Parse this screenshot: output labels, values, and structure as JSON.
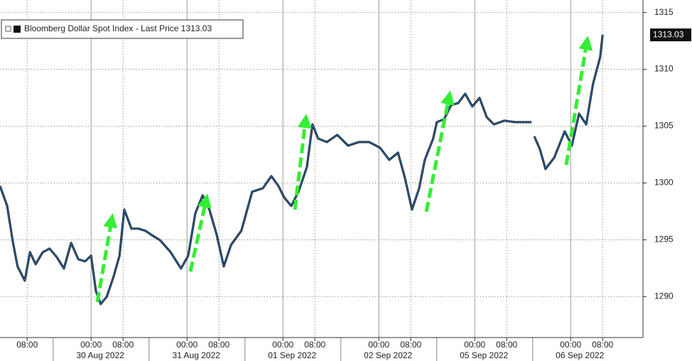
{
  "chart_data": {
    "type": "line",
    "series": [
      {
        "name": "Bloomberg Dollar Spot Index - Last Price",
        "color": "#2a6fb5",
        "last_value": 1313.03,
        "values": [
          1299.73,
          1297.98,
          1294.85,
          1292.66,
          1291.41,
          1293.91,
          1292.85,
          1293.91,
          1294.23,
          1293.48,
          1292.48,
          1294.73,
          1293.29,
          1293.1,
          1293.6,
          1290.48,
          1289.35,
          1289.98,
          1291.73,
          1293.6,
          1297.66,
          1295.98,
          1295.98,
          1295.79,
          1295.48,
          1294.98,
          1293.91,
          1292.48,
          1293.6,
          1297.35,
          1298.91,
          1297.66,
          1295.48,
          1292.66,
          1294.54,
          1295.79,
          1299.23,
          1299.54,
          1300.6,
          1299.73,
          1298.73,
          1297.98,
          1299.23,
          1301.41,
          1305.16,
          1303.91,
          1303.6,
          1304.23,
          1303.29,
          1303.6,
          1303.6,
          1303.1,
          1302.04,
          1302.66,
          1300.48,
          1297.66,
          1299.54,
          1302.04,
          1303.91,
          1305.35,
          1305.6,
          1306.85,
          1307.04,
          1307.85,
          1306.73,
          1307.48,
          1305.79,
          1305.16,
          1305.48,
          1305.35,
          1305.35,
          1305.35,
          null,
          1304.1,
          1302.98,
          1301.23,
          1302.23,
          1304.54,
          1303.29,
          1306.1,
          1305.16,
          1308.73,
          1311.1,
          1313.03
        ]
      }
    ],
    "x": [
      1.2,
      3.0,
      4.4,
      5.6,
      7.4,
      8.7,
      10.1,
      11.9,
      13.6,
      15.4,
      17.2,
      19.0,
      20.8,
      22.5,
      24.0,
      25.2,
      26.4,
      27.9,
      29.6,
      31.1,
      32.3,
      34.1,
      35.9,
      37.6,
      38.9,
      41.2,
      43.9,
      46.5,
      48.3,
      50.1,
      51.9,
      53.6,
      55.4,
      57.2,
      59.0,
      61.6,
      64.3,
      67.0,
      69.1,
      70.9,
      72.3,
      74.1,
      75.9,
      78.0,
      79.4,
      80.8,
      83.0,
      85.6,
      88.3,
      91.0,
      93.6,
      96.3,
      98.6,
      100.8,
      102.5,
      104.3,
      106.1,
      107.5,
      109.6,
      110.5,
      112.3,
      114.1,
      115.9,
      117.6,
      119.4,
      121.2,
      123.0,
      124.8,
      127.4,
      130.1,
      131.9,
      134.2,
      134.6,
      134.9,
      136.3,
      137.7,
      139.9,
      142.5,
      144.3,
      146.1,
      147.9,
      149.6,
      151.4,
      152.0
    ],
    "xlim": [
      1.2,
      162.1
    ],
    "xticks": [
      {
        "value": 8,
        "label": "08:00"
      },
      {
        "value": 24,
        "label": "00:00"
      },
      {
        "value": 32,
        "label": "08:00"
      },
      {
        "value": 48,
        "label": "00:00"
      },
      {
        "value": 56,
        "label": "08:00"
      },
      {
        "value": 72,
        "label": "00:00"
      },
      {
        "value": 80,
        "label": "08:00"
      },
      {
        "value": 96,
        "label": "00:00"
      },
      {
        "value": 104,
        "label": "08:00"
      },
      {
        "value": 120,
        "label": "00:00"
      },
      {
        "value": 128,
        "label": "08:00"
      },
      {
        "value": 144,
        "label": "00:00"
      },
      {
        "value": 152,
        "label": "08:00"
      }
    ],
    "dates": [
      "30 Aug 2022",
      "31 Aug 2022",
      "01 Sep 2022",
      "02 Sep 2022",
      "05 Sep 2022",
      "06 Sep 2022"
    ],
    "ylim": [
      1286.4,
      1316.1
    ],
    "yticks": [
      1290,
      1295,
      1300,
      1305,
      1310,
      1315
    ],
    "grid": true
  }
}
